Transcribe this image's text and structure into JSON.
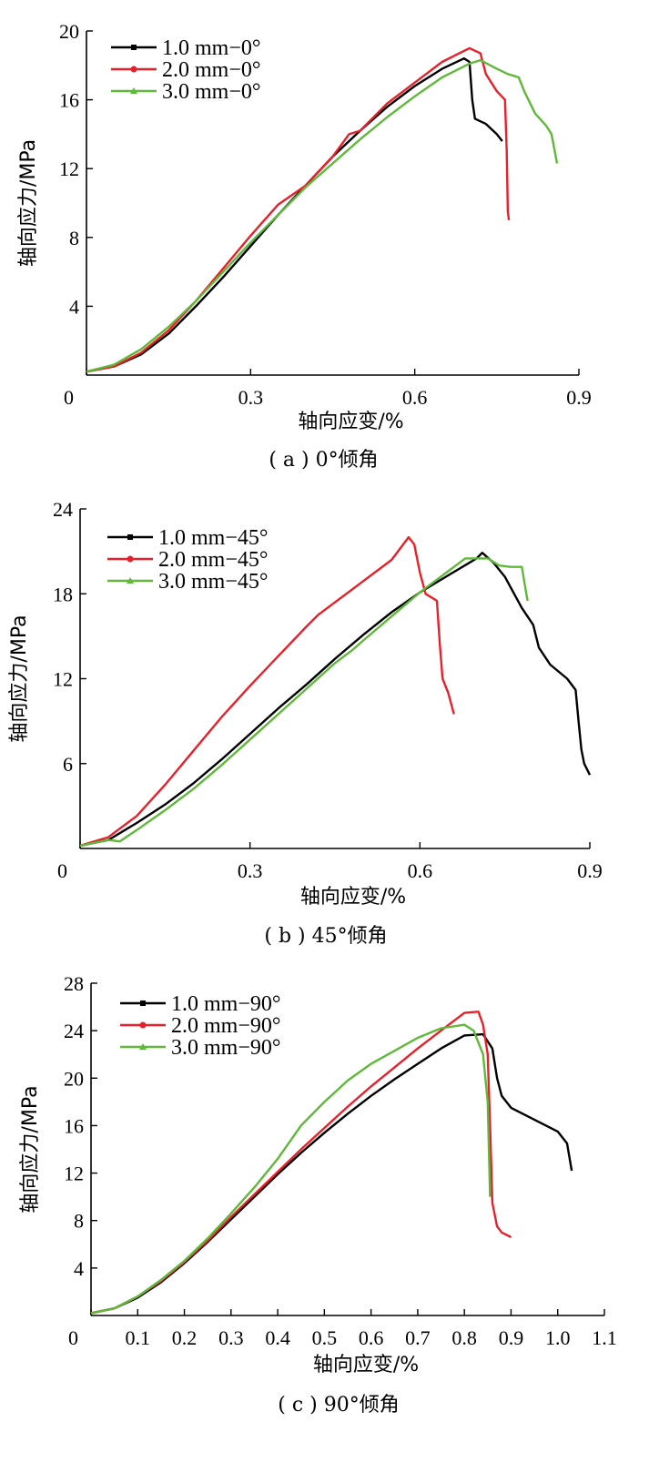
{
  "chart_data": [
    {
      "type": "line",
      "caption": "( a ) 0°倾角",
      "xlabel": "轴向应变/%",
      "ylabel": "轴向应力/MPa",
      "xlim": [
        0,
        0.9
      ],
      "ylim": [
        0,
        20
      ],
      "xticks": [
        "0",
        "0.3",
        "0.6",
        "0.9"
      ],
      "yticks": [
        "4",
        "8",
        "12",
        "16",
        "20"
      ],
      "legend_position": "top-left",
      "series": [
        {
          "name": "1.0 mm−0°",
          "color": "#000000",
          "marker": "square",
          "points": [
            [
              0.0,
              0.2
            ],
            [
              0.05,
              0.5
            ],
            [
              0.1,
              1.2
            ],
            [
              0.15,
              2.4
            ],
            [
              0.2,
              4.0
            ],
            [
              0.25,
              5.7
            ],
            [
              0.3,
              7.5
            ],
            [
              0.35,
              9.3
            ],
            [
              0.4,
              11.0
            ],
            [
              0.45,
              12.7
            ],
            [
              0.5,
              14.2
            ],
            [
              0.55,
              15.6
            ],
            [
              0.6,
              16.8
            ],
            [
              0.65,
              17.8
            ],
            [
              0.69,
              18.4
            ],
            [
              0.7,
              18.2
            ],
            [
              0.705,
              16.0
            ],
            [
              0.71,
              14.9
            ],
            [
              0.73,
              14.6
            ],
            [
              0.75,
              14.0
            ],
            [
              0.76,
              13.6
            ]
          ]
        },
        {
          "name": "2.0 mm−0°",
          "color": "#e8202a",
          "marker": "circle",
          "points": [
            [
              0.0,
              0.2
            ],
            [
              0.05,
              0.5
            ],
            [
              0.1,
              1.3
            ],
            [
              0.15,
              2.6
            ],
            [
              0.2,
              4.3
            ],
            [
              0.25,
              6.2
            ],
            [
              0.3,
              8.1
            ],
            [
              0.35,
              9.9
            ],
            [
              0.4,
              11.0
            ],
            [
              0.45,
              12.7
            ],
            [
              0.48,
              14.0
            ],
            [
              0.5,
              14.2
            ],
            [
              0.55,
              15.8
            ],
            [
              0.6,
              17.0
            ],
            [
              0.65,
              18.2
            ],
            [
              0.7,
              19.0
            ],
            [
              0.72,
              18.7
            ],
            [
              0.73,
              17.5
            ],
            [
              0.75,
              16.5
            ],
            [
              0.765,
              16.0
            ],
            [
              0.768,
              13.0
            ],
            [
              0.77,
              9.5
            ],
            [
              0.772,
              9.0
            ]
          ]
        },
        {
          "name": "3.0 mm−0°",
          "color": "#60b83a",
          "marker": "triangle",
          "points": [
            [
              0.0,
              0.2
            ],
            [
              0.05,
              0.6
            ],
            [
              0.1,
              1.5
            ],
            [
              0.15,
              2.8
            ],
            [
              0.2,
              4.3
            ],
            [
              0.25,
              6.0
            ],
            [
              0.3,
              7.7
            ],
            [
              0.35,
              9.3
            ],
            [
              0.4,
              10.9
            ],
            [
              0.45,
              12.3
            ],
            [
              0.5,
              13.7
            ],
            [
              0.55,
              15.0
            ],
            [
              0.6,
              16.2
            ],
            [
              0.65,
              17.3
            ],
            [
              0.7,
              18.1
            ],
            [
              0.72,
              18.3
            ],
            [
              0.75,
              17.8
            ],
            [
              0.77,
              17.5
            ],
            [
              0.79,
              17.3
            ],
            [
              0.8,
              16.5
            ],
            [
              0.82,
              15.2
            ],
            [
              0.84,
              14.5
            ],
            [
              0.85,
              14.0
            ],
            [
              0.86,
              12.3
            ]
          ]
        }
      ]
    },
    {
      "type": "line",
      "caption": "( b ) 45°倾角",
      "xlabel": "轴向应变/%",
      "ylabel": "轴向应力/MPa",
      "xlim": [
        0,
        0.9
      ],
      "ylim": [
        0,
        24
      ],
      "xticks": [
        "0",
        "0.3",
        "0.6",
        "0.9"
      ],
      "yticks": [
        "6",
        "12",
        "18",
        "24"
      ],
      "legend_position": "top-left",
      "series": [
        {
          "name": "1.0 mm−45°",
          "color": "#000000",
          "marker": "square",
          "points": [
            [
              0.0,
              0.2
            ],
            [
              0.05,
              0.6
            ],
            [
              0.1,
              1.8
            ],
            [
              0.15,
              3.1
            ],
            [
              0.2,
              4.6
            ],
            [
              0.25,
              6.3
            ],
            [
              0.3,
              8.1
            ],
            [
              0.35,
              9.9
            ],
            [
              0.4,
              11.6
            ],
            [
              0.45,
              13.4
            ],
            [
              0.5,
              15.1
            ],
            [
              0.55,
              16.7
            ],
            [
              0.6,
              18.1
            ],
            [
              0.65,
              19.3
            ],
            [
              0.7,
              20.5
            ],
            [
              0.71,
              20.9
            ],
            [
              0.73,
              20.2
            ],
            [
              0.75,
              19.2
            ],
            [
              0.78,
              17.0
            ],
            [
              0.8,
              15.8
            ],
            [
              0.81,
              14.2
            ],
            [
              0.83,
              13.0
            ],
            [
              0.86,
              12.0
            ],
            [
              0.875,
              11.2
            ],
            [
              0.88,
              9.0
            ],
            [
              0.885,
              7.0
            ],
            [
              0.89,
              6.0
            ],
            [
              0.9,
              5.2
            ]
          ]
        },
        {
          "name": "2.0 mm−45°",
          "color": "#e8202a",
          "marker": "circle",
          "points": [
            [
              0.0,
              0.2
            ],
            [
              0.05,
              0.8
            ],
            [
              0.1,
              2.3
            ],
            [
              0.15,
              4.5
            ],
            [
              0.2,
              6.9
            ],
            [
              0.25,
              9.3
            ],
            [
              0.3,
              11.5
            ],
            [
              0.35,
              13.6
            ],
            [
              0.4,
              15.7
            ],
            [
              0.42,
              16.5
            ],
            [
              0.45,
              17.4
            ],
            [
              0.5,
              18.9
            ],
            [
              0.55,
              20.4
            ],
            [
              0.58,
              22.0
            ],
            [
              0.59,
              21.5
            ],
            [
              0.6,
              19.5
            ],
            [
              0.61,
              18.0
            ],
            [
              0.63,
              17.5
            ],
            [
              0.635,
              14.5
            ],
            [
              0.64,
              12.0
            ],
            [
              0.65,
              11.0
            ],
            [
              0.66,
              9.5
            ]
          ]
        },
        {
          "name": "3.0 mm−45°",
          "color": "#60b83a",
          "marker": "triangle",
          "points": [
            [
              0.0,
              0.2
            ],
            [
              0.05,
              0.6
            ],
            [
              0.07,
              0.5
            ],
            [
              0.1,
              1.3
            ],
            [
              0.15,
              2.7
            ],
            [
              0.2,
              4.2
            ],
            [
              0.25,
              5.9
            ],
            [
              0.3,
              7.7
            ],
            [
              0.35,
              9.5
            ],
            [
              0.4,
              11.3
            ],
            [
              0.45,
              13.1
            ],
            [
              0.48,
              14.0
            ],
            [
              0.5,
              14.7
            ],
            [
              0.55,
              16.4
            ],
            [
              0.6,
              18.1
            ],
            [
              0.65,
              19.6
            ],
            [
              0.68,
              20.5
            ],
            [
              0.72,
              20.5
            ],
            [
              0.74,
              20.0
            ],
            [
              0.76,
              19.9
            ],
            [
              0.78,
              19.9
            ],
            [
              0.785,
              18.7
            ],
            [
              0.79,
              17.5
            ]
          ]
        }
      ]
    },
    {
      "type": "line",
      "caption": "( c ) 90°倾角",
      "xlabel": "轴向应变/%",
      "ylabel": "轴向应力/MPa",
      "xlim": [
        0,
        1.1
      ],
      "ylim": [
        0,
        28
      ],
      "xticks": [
        "0",
        "0.1",
        "0.2",
        "0.3",
        "0.4",
        "0.5",
        "0.6",
        "0.7",
        "0.8",
        "0.9",
        "1.0",
        "1.1"
      ],
      "yticks": [
        "4",
        "8",
        "12",
        "16",
        "20",
        "24",
        "28"
      ],
      "legend_position": "top-left",
      "series": [
        {
          "name": "1.0 mm−90°",
          "color": "#000000",
          "marker": "square",
          "points": [
            [
              0.0,
              0.2
            ],
            [
              0.05,
              0.6
            ],
            [
              0.1,
              1.5
            ],
            [
              0.15,
              2.8
            ],
            [
              0.2,
              4.4
            ],
            [
              0.25,
              6.2
            ],
            [
              0.3,
              8.1
            ],
            [
              0.35,
              10.0
            ],
            [
              0.4,
              11.9
            ],
            [
              0.45,
              13.7
            ],
            [
              0.5,
              15.4
            ],
            [
              0.55,
              17.0
            ],
            [
              0.6,
              18.5
            ],
            [
              0.65,
              19.9
            ],
            [
              0.7,
              21.2
            ],
            [
              0.75,
              22.5
            ],
            [
              0.8,
              23.6
            ],
            [
              0.84,
              23.7
            ],
            [
              0.86,
              22.5
            ],
            [
              0.87,
              20.0
            ],
            [
              0.88,
              18.5
            ],
            [
              0.9,
              17.5
            ],
            [
              0.95,
              16.5
            ],
            [
              1.0,
              15.5
            ],
            [
              1.02,
              14.5
            ],
            [
              1.03,
              12.2
            ]
          ]
        },
        {
          "name": "2.0 mm−90°",
          "color": "#e8202a",
          "marker": "circle",
          "points": [
            [
              0.0,
              0.2
            ],
            [
              0.05,
              0.6
            ],
            [
              0.1,
              1.6
            ],
            [
              0.15,
              2.9
            ],
            [
              0.2,
              4.5
            ],
            [
              0.25,
              6.3
            ],
            [
              0.3,
              8.3
            ],
            [
              0.35,
              10.2
            ],
            [
              0.4,
              12.1
            ],
            [
              0.45,
              14.0
            ],
            [
              0.5,
              15.8
            ],
            [
              0.55,
              17.6
            ],
            [
              0.6,
              19.3
            ],
            [
              0.65,
              20.9
            ],
            [
              0.7,
              22.5
            ],
            [
              0.75,
              24.0
            ],
            [
              0.8,
              25.5
            ],
            [
              0.83,
              25.6
            ],
            [
              0.84,
              24.5
            ],
            [
              0.85,
              22.0
            ],
            [
              0.855,
              16.0
            ],
            [
              0.86,
              9.5
            ],
            [
              0.87,
              7.5
            ],
            [
              0.88,
              7.0
            ],
            [
              0.9,
              6.6
            ]
          ]
        },
        {
          "name": "3.0 mm−90°",
          "color": "#60b83a",
          "marker": "triangle",
          "points": [
            [
              0.0,
              0.2
            ],
            [
              0.05,
              0.6
            ],
            [
              0.1,
              1.6
            ],
            [
              0.15,
              3.0
            ],
            [
              0.2,
              4.6
            ],
            [
              0.25,
              6.5
            ],
            [
              0.3,
              8.6
            ],
            [
              0.35,
              10.8
            ],
            [
              0.4,
              13.2
            ],
            [
              0.45,
              16.0
            ],
            [
              0.5,
              18.0
            ],
            [
              0.55,
              19.8
            ],
            [
              0.6,
              21.2
            ],
            [
              0.65,
              22.3
            ],
            [
              0.7,
              23.4
            ],
            [
              0.75,
              24.2
            ],
            [
              0.8,
              24.5
            ],
            [
              0.82,
              24.0
            ],
            [
              0.84,
              22.0
            ],
            [
              0.85,
              18.0
            ],
            [
              0.855,
              10.0
            ]
          ]
        }
      ]
    }
  ]
}
